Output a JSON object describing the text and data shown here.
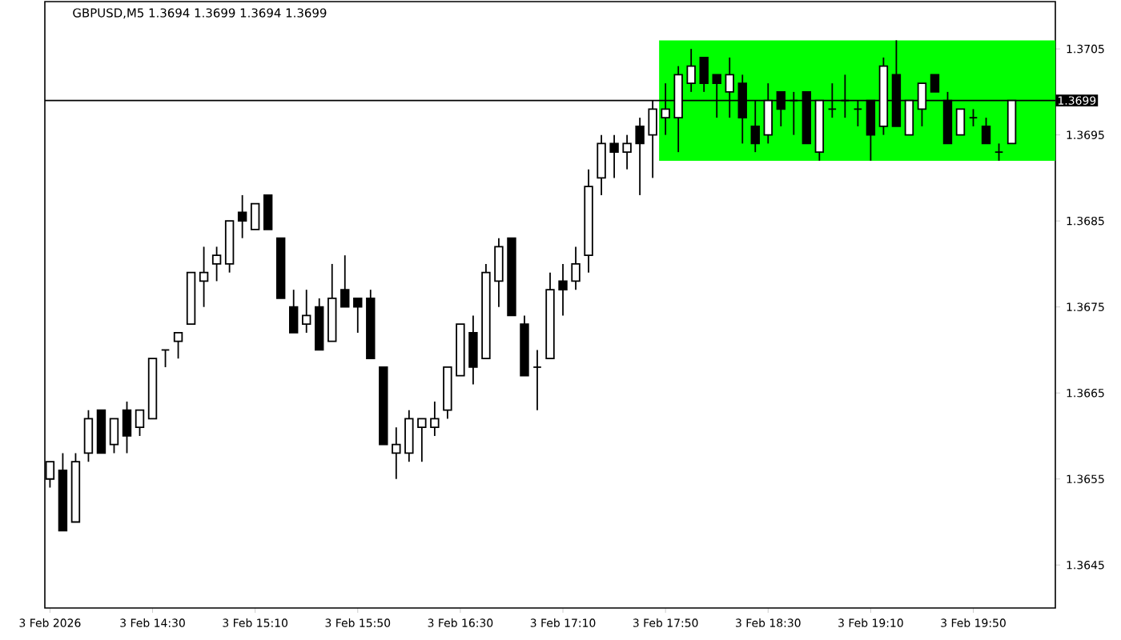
{
  "chart_data": {
    "type": "candlestick",
    "title": "GBPUSD,M5  1.3694 1.3699 1.3694 1.3699",
    "x": [
      "2026-02-03T13:50",
      "2026-02-03T13:55",
      "2026-02-03T14:00",
      "2026-02-03T14:05",
      "2026-02-03T14:10",
      "2026-02-03T14:15",
      "2026-02-03T14:20",
      "2026-02-03T14:25",
      "2026-02-03T14:30",
      "2026-02-03T14:35",
      "2026-02-03T14:40",
      "2026-02-03T14:45",
      "2026-02-03T14:50",
      "2026-02-03T14:55",
      "2026-02-03T15:00",
      "2026-02-03T15:05",
      "2026-02-03T15:10",
      "2026-02-03T15:15",
      "2026-02-03T15:20",
      "2026-02-03T15:25",
      "2026-02-03T15:30",
      "2026-02-03T15:35",
      "2026-02-03T15:40",
      "2026-02-03T15:45",
      "2026-02-03T15:50",
      "2026-02-03T15:55",
      "2026-02-03T16:00",
      "2026-02-03T16:05",
      "2026-02-03T16:10",
      "2026-02-03T16:15",
      "2026-02-03T16:20",
      "2026-02-03T16:25",
      "2026-02-03T16:30",
      "2026-02-03T16:35",
      "2026-02-03T16:40",
      "2026-02-03T16:45",
      "2026-02-03T16:50",
      "2026-02-03T16:55",
      "2026-02-03T17:00",
      "2026-02-03T17:05",
      "2026-02-03T17:10",
      "2026-02-03T17:15",
      "2026-02-03T17:20",
      "2026-02-03T17:25",
      "2026-02-03T17:30",
      "2026-02-03T17:35",
      "2026-02-03T17:40",
      "2026-02-03T17:45",
      "2026-02-03T17:50",
      "2026-02-03T17:55",
      "2026-02-03T18:00",
      "2026-02-03T18:05",
      "2026-02-03T18:10",
      "2026-02-03T18:15",
      "2026-02-03T18:20",
      "2026-02-03T18:25",
      "2026-02-03T18:30",
      "2026-02-03T18:35",
      "2026-02-03T18:40",
      "2026-02-03T18:45",
      "2026-02-03T18:50",
      "2026-02-03T18:55",
      "2026-02-03T19:00",
      "2026-02-03T19:05",
      "2026-02-03T19:10",
      "2026-02-03T19:15",
      "2026-02-03T19:20",
      "2026-02-03T19:25",
      "2026-02-03T19:30",
      "2026-02-03T19:35",
      "2026-02-03T19:40",
      "2026-02-03T19:45",
      "2026-02-03T19:50",
      "2026-02-03T19:55",
      "2026-02-03T20:00",
      "2026-02-03T20:05"
    ],
    "ohlc": [
      [
        1.3655,
        1.3657,
        1.3654,
        1.3657
      ],
      [
        1.3656,
        1.3658,
        1.3649,
        1.3649
      ],
      [
        1.365,
        1.3658,
        1.365,
        1.3657
      ],
      [
        1.3658,
        1.3663,
        1.3657,
        1.3662
      ],
      [
        1.3663,
        1.3663,
        1.3658,
        1.3658
      ],
      [
        1.3659,
        1.3662,
        1.3658,
        1.3662
      ],
      [
        1.3663,
        1.3664,
        1.3658,
        1.366
      ],
      [
        1.3661,
        1.3663,
        1.366,
        1.3663
      ],
      [
        1.3662,
        1.3669,
        1.3662,
        1.3669
      ],
      [
        1.367,
        1.367,
        1.3668,
        1.367
      ],
      [
        1.3671,
        1.3672,
        1.3669,
        1.3672
      ],
      [
        1.3673,
        1.3679,
        1.3673,
        1.3679
      ],
      [
        1.3678,
        1.3682,
        1.3675,
        1.3679
      ],
      [
        1.368,
        1.3682,
        1.3678,
        1.3681
      ],
      [
        1.368,
        1.3685,
        1.3679,
        1.3685
      ],
      [
        1.3686,
        1.3688,
        1.3683,
        1.3685
      ],
      [
        1.3684,
        1.3687,
        1.3684,
        1.3687
      ],
      [
        1.3688,
        1.3688,
        1.3684,
        1.3684
      ],
      [
        1.3683,
        1.3683,
        1.3676,
        1.3676
      ],
      [
        1.3675,
        1.3677,
        1.3672,
        1.3672
      ],
      [
        1.3673,
        1.3677,
        1.3672,
        1.3674
      ],
      [
        1.3675,
        1.3676,
        1.367,
        1.367
      ],
      [
        1.3671,
        1.368,
        1.3671,
        1.3676
      ],
      [
        1.3677,
        1.3681,
        1.3675,
        1.3675
      ],
      [
        1.3676,
        1.3676,
        1.3672,
        1.3675
      ],
      [
        1.3676,
        1.3677,
        1.3669,
        1.3669
      ],
      [
        1.3668,
        1.3668,
        1.3659,
        1.3659
      ],
      [
        1.3658,
        1.3661,
        1.3655,
        1.3659
      ],
      [
        1.3658,
        1.3663,
        1.3657,
        1.3662
      ],
      [
        1.3661,
        1.3662,
        1.3657,
        1.3662
      ],
      [
        1.3661,
        1.3664,
        1.366,
        1.3662
      ],
      [
        1.3663,
        1.3668,
        1.3662,
        1.3668
      ],
      [
        1.3667,
        1.3673,
        1.3667,
        1.3673
      ],
      [
        1.3672,
        1.3674,
        1.3666,
        1.3668
      ],
      [
        1.3669,
        1.368,
        1.3669,
        1.3679
      ],
      [
        1.3678,
        1.3683,
        1.3675,
        1.3682
      ],
      [
        1.3683,
        1.3683,
        1.3674,
        1.3674
      ],
      [
        1.3673,
        1.3674,
        1.3667,
        1.3667
      ],
      [
        1.3668,
        1.367,
        1.3663,
        1.3668
      ],
      [
        1.3669,
        1.3679,
        1.3669,
        1.3677
      ],
      [
        1.3678,
        1.368,
        1.3674,
        1.3677
      ],
      [
        1.3678,
        1.3682,
        1.3677,
        1.368
      ],
      [
        1.3681,
        1.3691,
        1.3679,
        1.3689
      ],
      [
        1.369,
        1.3695,
        1.3688,
        1.3694
      ],
      [
        1.3694,
        1.3695,
        1.369,
        1.3693
      ],
      [
        1.3693,
        1.3695,
        1.3691,
        1.3694
      ],
      [
        1.3696,
        1.3697,
        1.3688,
        1.3694
      ],
      [
        1.3695,
        1.3699,
        1.369,
        1.3698
      ],
      [
        1.3697,
        1.3701,
        1.3695,
        1.3698
      ],
      [
        1.3697,
        1.3703,
        1.3693,
        1.3702
      ],
      [
        1.3701,
        1.3705,
        1.37,
        1.3703
      ],
      [
        1.3704,
        1.3704,
        1.37,
        1.3701
      ],
      [
        1.3702,
        1.3702,
        1.3697,
        1.3701
      ],
      [
        1.37,
        1.3704,
        1.3697,
        1.3702
      ],
      [
        1.3701,
        1.3702,
        1.3694,
        1.3697
      ],
      [
        1.3696,
        1.3699,
        1.3693,
        1.3694
      ],
      [
        1.3695,
        1.3701,
        1.3694,
        1.3699
      ],
      [
        1.37,
        1.37,
        1.3696,
        1.3698
      ],
      [
        1.3699,
        1.37,
        1.3695,
        1.3699
      ],
      [
        1.37,
        1.37,
        1.3694,
        1.3694
      ],
      [
        1.3693,
        1.3699,
        1.3692,
        1.3699
      ],
      [
        1.3698,
        1.3701,
        1.3697,
        1.3698
      ],
      [
        1.3699,
        1.3702,
        1.3697,
        1.3699
      ],
      [
        1.3698,
        1.3699,
        1.3696,
        1.3698
      ],
      [
        1.3699,
        1.3699,
        1.3692,
        1.3695
      ],
      [
        1.3696,
        1.3704,
        1.3695,
        1.3703
      ],
      [
        1.3702,
        1.3706,
        1.3696,
        1.3696
      ],
      [
        1.3695,
        1.3699,
        1.3695,
        1.3699
      ],
      [
        1.3698,
        1.3701,
        1.3696,
        1.3701
      ],
      [
        1.3702,
        1.3702,
        1.37,
        1.37
      ],
      [
        1.3699,
        1.37,
        1.3694,
        1.3694
      ],
      [
        1.3695,
        1.3698,
        1.3695,
        1.3698
      ],
      [
        1.3697,
        1.3698,
        1.3696,
        1.3697
      ],
      [
        1.3696,
        1.3697,
        1.3694,
        1.3694
      ],
      [
        1.3693,
        1.3694,
        1.3692,
        1.3693
      ],
      [
        1.3694,
        1.3699,
        1.3694,
        1.3699
      ]
    ],
    "xlim": [
      "2026-02-03T13:48",
      "2026-02-03T20:22"
    ],
    "xticks": [
      {
        "value": "2026-02-03T13:50",
        "label": "3 Feb 2026"
      },
      {
        "value": "2026-02-03T14:30",
        "label": "3 Feb 14:30"
      },
      {
        "value": "2026-02-03T15:10",
        "label": "3 Feb 15:10"
      },
      {
        "value": "2026-02-03T15:50",
        "label": "3 Feb 15:50"
      },
      {
        "value": "2026-02-03T16:30",
        "label": "3 Feb 16:30"
      },
      {
        "value": "2026-02-03T17:10",
        "label": "3 Feb 17:10"
      },
      {
        "value": "2026-02-03T17:50",
        "label": "3 Feb 17:50"
      },
      {
        "value": "2026-02-03T18:30",
        "label": "3 Feb 18:30"
      },
      {
        "value": "2026-02-03T19:10",
        "label": "3 Feb 19:10"
      },
      {
        "value": "2026-02-03T19:50",
        "label": "3 Feb 19:50"
      }
    ],
    "ylim": [
      1.364,
      1.37105
    ],
    "yticks": [
      1.3645,
      1.3655,
      1.3665,
      1.3675,
      1.3685,
      1.3695,
      1.3705
    ],
    "ref_lines": [
      {
        "axis": "y",
        "value": 1.3699,
        "label": "1.3699",
        "color": "#000000"
      }
    ],
    "bands": [
      {
        "axis": "y",
        "from": 1.3692,
        "to": 1.3706,
        "color": "#00ff00"
      }
    ]
  }
}
